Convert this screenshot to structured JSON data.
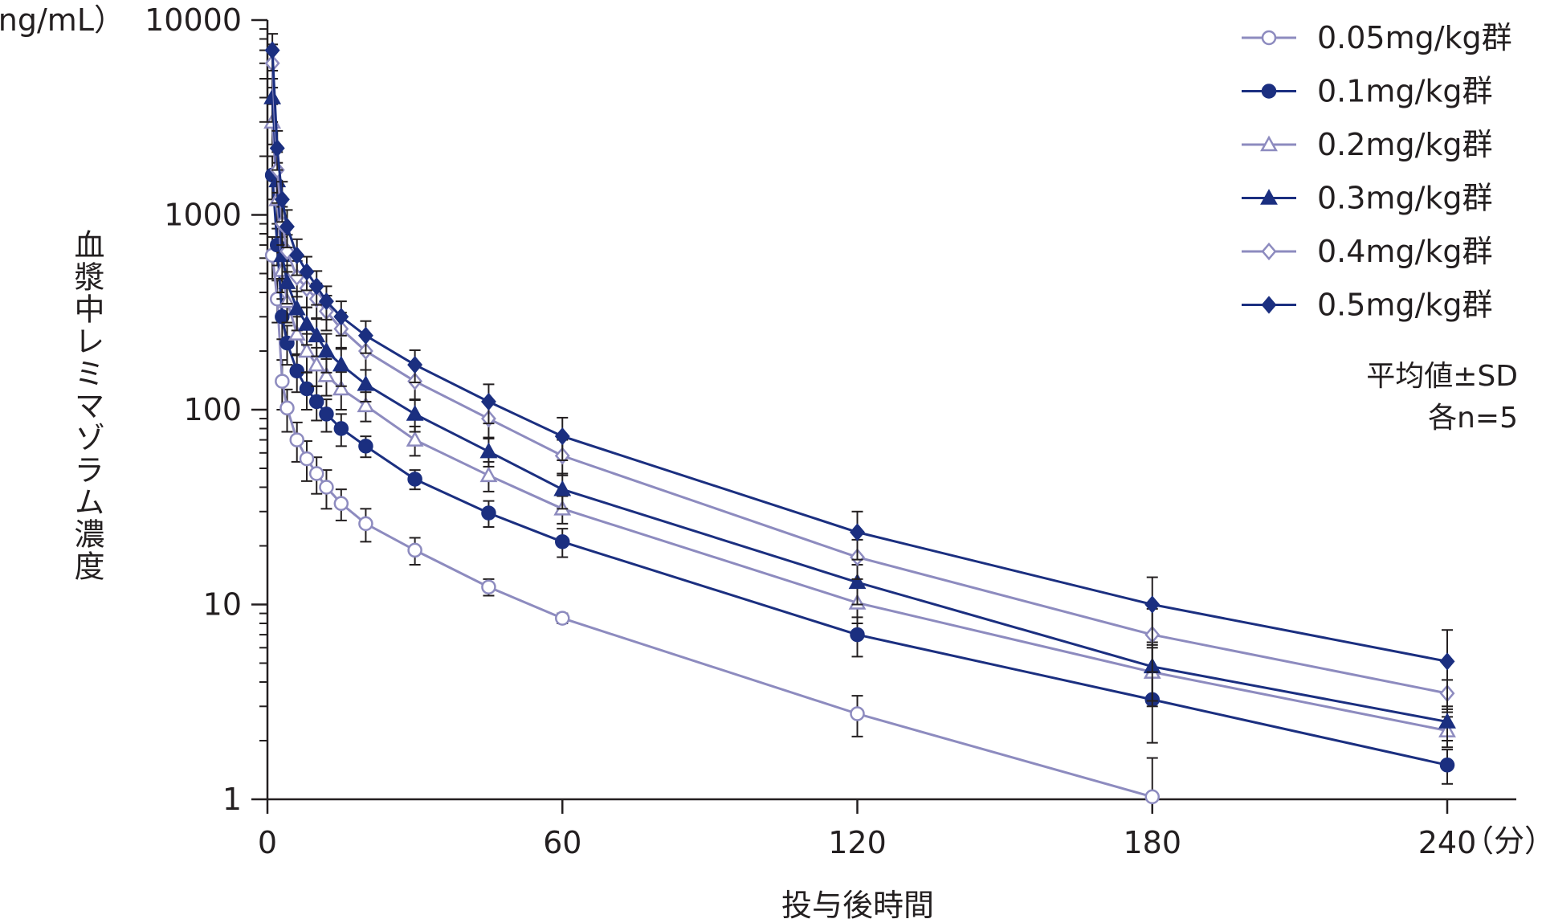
{
  "chart_data": {
    "type": "line",
    "xlabel": "投与後時間",
    "x_unit": "（分）",
    "ylabel": "血漿中レミマゾラム濃度",
    "y_unit": "（ng/mL）",
    "y_scale": "log",
    "xlim": [
      0,
      252
    ],
    "ylim": [
      1,
      10000
    ],
    "x_ticks": [
      0,
      60,
      120,
      180,
      240
    ],
    "x_tick_labels": [
      "0",
      "60",
      "120",
      "180",
      "240"
    ],
    "y_ticks": [
      1,
      10,
      100,
      1000,
      10000
    ],
    "y_tick_labels": [
      "1",
      "10",
      "100",
      "1000",
      "10000"
    ],
    "grid": false,
    "legend_position": "top-right",
    "notes": [
      "平均値±SD",
      "各n=5"
    ],
    "series": [
      {
        "name": "0.05mg/kg群",
        "marker": "open-circle",
        "color": "#8d8bbf",
        "points": [
          {
            "x": 1,
            "y": 620,
            "sd": 150
          },
          {
            "x": 2,
            "y": 370,
            "sd": 90
          },
          {
            "x": 3,
            "y": 140,
            "sd": 40
          },
          {
            "x": 4,
            "y": 102,
            "sd": 25
          },
          {
            "x": 6,
            "y": 70,
            "sd": 16
          },
          {
            "x": 8,
            "y": 56,
            "sd": 13
          },
          {
            "x": 10,
            "y": 47,
            "sd": 10
          },
          {
            "x": 12,
            "y": 40,
            "sd": 9
          },
          {
            "x": 15,
            "y": 33,
            "sd": 6
          },
          {
            "x": 20,
            "y": 26,
            "sd": 5
          },
          {
            "x": 30,
            "y": 19,
            "sd": 3
          },
          {
            "x": 45,
            "y": 12.3,
            "sd": 1.2
          },
          {
            "x": 60,
            "y": 8.5,
            "sd": 0.5
          },
          {
            "x": 120,
            "y": 2.75,
            "sd": 0.65
          },
          {
            "x": 180,
            "y": 1.03,
            "sd": 0.6
          }
        ]
      },
      {
        "name": "0.1mg/kg群",
        "marker": "filled-circle",
        "color": "#1b2f80",
        "points": [
          {
            "x": 1,
            "y": 1600,
            "sd": 400
          },
          {
            "x": 2,
            "y": 700,
            "sd": 150
          },
          {
            "x": 3,
            "y": 300,
            "sd": 70
          },
          {
            "x": 4,
            "y": 220,
            "sd": 50
          },
          {
            "x": 6,
            "y": 158,
            "sd": 35
          },
          {
            "x": 8,
            "y": 128,
            "sd": 28
          },
          {
            "x": 10,
            "y": 110,
            "sd": 22
          },
          {
            "x": 12,
            "y": 95,
            "sd": 18
          },
          {
            "x": 15,
            "y": 80,
            "sd": 15
          },
          {
            "x": 20,
            "y": 65,
            "sd": 8
          },
          {
            "x": 30,
            "y": 44,
            "sd": 5
          },
          {
            "x": 45,
            "y": 29.5,
            "sd": 4.5
          },
          {
            "x": 60,
            "y": 21,
            "sd": 3.5
          },
          {
            "x": 120,
            "y": 7,
            "sd": 1.6
          },
          {
            "x": 180,
            "y": 3.25,
            "sd": 1.3
          },
          {
            "x": 240,
            "y": 1.5,
            "sd": 0.3
          }
        ]
      },
      {
        "name": "0.2mg/kg群",
        "marker": "open-triangle",
        "color": "#8d8bbf",
        "points": [
          {
            "x": 1,
            "y": 3000,
            "sd": 700
          },
          {
            "x": 2,
            "y": 1200,
            "sd": 300
          },
          {
            "x": 3,
            "y": 520,
            "sd": 120
          },
          {
            "x": 4,
            "y": 360,
            "sd": 80
          },
          {
            "x": 6,
            "y": 245,
            "sd": 55
          },
          {
            "x": 8,
            "y": 200,
            "sd": 45
          },
          {
            "x": 10,
            "y": 170,
            "sd": 38
          },
          {
            "x": 12,
            "y": 150,
            "sd": 32
          },
          {
            "x": 15,
            "y": 128,
            "sd": 28
          },
          {
            "x": 20,
            "y": 105,
            "sd": 18
          },
          {
            "x": 30,
            "y": 70,
            "sd": 12
          },
          {
            "x": 45,
            "y": 46,
            "sd": 8
          },
          {
            "x": 60,
            "y": 31,
            "sd": 5
          },
          {
            "x": 120,
            "y": 10.2,
            "sd": 2.2
          },
          {
            "x": 180,
            "y": 4.5,
            "sd": 1.5
          },
          {
            "x": 240,
            "y": 2.25,
            "sd": 0.4
          }
        ]
      },
      {
        "name": "0.3mg/kg群",
        "marker": "filled-triangle",
        "color": "#1b2f80",
        "points": [
          {
            "x": 1,
            "y": 4000,
            "sd": 1000
          },
          {
            "x": 2,
            "y": 1500,
            "sd": 350
          },
          {
            "x": 3,
            "y": 620,
            "sd": 150
          },
          {
            "x": 4,
            "y": 450,
            "sd": 100
          },
          {
            "x": 6,
            "y": 330,
            "sd": 75
          },
          {
            "x": 8,
            "y": 275,
            "sd": 60
          },
          {
            "x": 10,
            "y": 240,
            "sd": 52
          },
          {
            "x": 12,
            "y": 200,
            "sd": 45
          },
          {
            "x": 15,
            "y": 170,
            "sd": 38
          },
          {
            "x": 20,
            "y": 135,
            "sd": 25
          },
          {
            "x": 30,
            "y": 95,
            "sd": 18
          },
          {
            "x": 45,
            "y": 61,
            "sd": 10
          },
          {
            "x": 60,
            "y": 39,
            "sd": 8
          },
          {
            "x": 120,
            "y": 13,
            "sd": 3
          },
          {
            "x": 180,
            "y": 4.8,
            "sd": 1.6
          },
          {
            "x": 240,
            "y": 2.5,
            "sd": 0.5
          }
        ]
      },
      {
        "name": "0.4mg/kg群",
        "marker": "open-diamond",
        "color": "#8d8bbf",
        "points": [
          {
            "x": 1,
            "y": 6000,
            "sd": 1500
          },
          {
            "x": 2,
            "y": 1700,
            "sd": 400
          },
          {
            "x": 3,
            "y": 900,
            "sd": 200
          },
          {
            "x": 4,
            "y": 650,
            "sd": 140
          },
          {
            "x": 6,
            "y": 480,
            "sd": 100
          },
          {
            "x": 8,
            "y": 420,
            "sd": 85
          },
          {
            "x": 10,
            "y": 370,
            "sd": 75
          },
          {
            "x": 12,
            "y": 320,
            "sd": 65
          },
          {
            "x": 15,
            "y": 260,
            "sd": 55
          },
          {
            "x": 20,
            "y": 200,
            "sd": 40
          },
          {
            "x": 30,
            "y": 140,
            "sd": 28
          },
          {
            "x": 45,
            "y": 90,
            "sd": 18
          },
          {
            "x": 60,
            "y": 58,
            "sd": 12
          },
          {
            "x": 120,
            "y": 17.5,
            "sd": 4
          },
          {
            "x": 180,
            "y": 7,
            "sd": 2.5
          },
          {
            "x": 240,
            "y": 3.5,
            "sd": 0.6
          }
        ]
      },
      {
        "name": "0.5mg/kg群",
        "marker": "filled-diamond",
        "color": "#1b2f80",
        "points": [
          {
            "x": 1,
            "y": 7000,
            "sd": 1500
          },
          {
            "x": 2,
            "y": 2200,
            "sd": 500
          },
          {
            "x": 3,
            "y": 1200,
            "sd": 280
          },
          {
            "x": 4,
            "y": 870,
            "sd": 190
          },
          {
            "x": 6,
            "y": 620,
            "sd": 130
          },
          {
            "x": 8,
            "y": 510,
            "sd": 100
          },
          {
            "x": 10,
            "y": 430,
            "sd": 85
          },
          {
            "x": 12,
            "y": 360,
            "sd": 70
          },
          {
            "x": 15,
            "y": 300,
            "sd": 60
          },
          {
            "x": 20,
            "y": 240,
            "sd": 45
          },
          {
            "x": 30,
            "y": 170,
            "sd": 32
          },
          {
            "x": 45,
            "y": 110,
            "sd": 25
          },
          {
            "x": 60,
            "y": 73,
            "sd": 18
          },
          {
            "x": 120,
            "y": 23.5,
            "sd": 6.5
          },
          {
            "x": 180,
            "y": 10,
            "sd": 3.8
          },
          {
            "x": 240,
            "y": 5.1,
            "sd": 2.3
          }
        ]
      }
    ]
  }
}
